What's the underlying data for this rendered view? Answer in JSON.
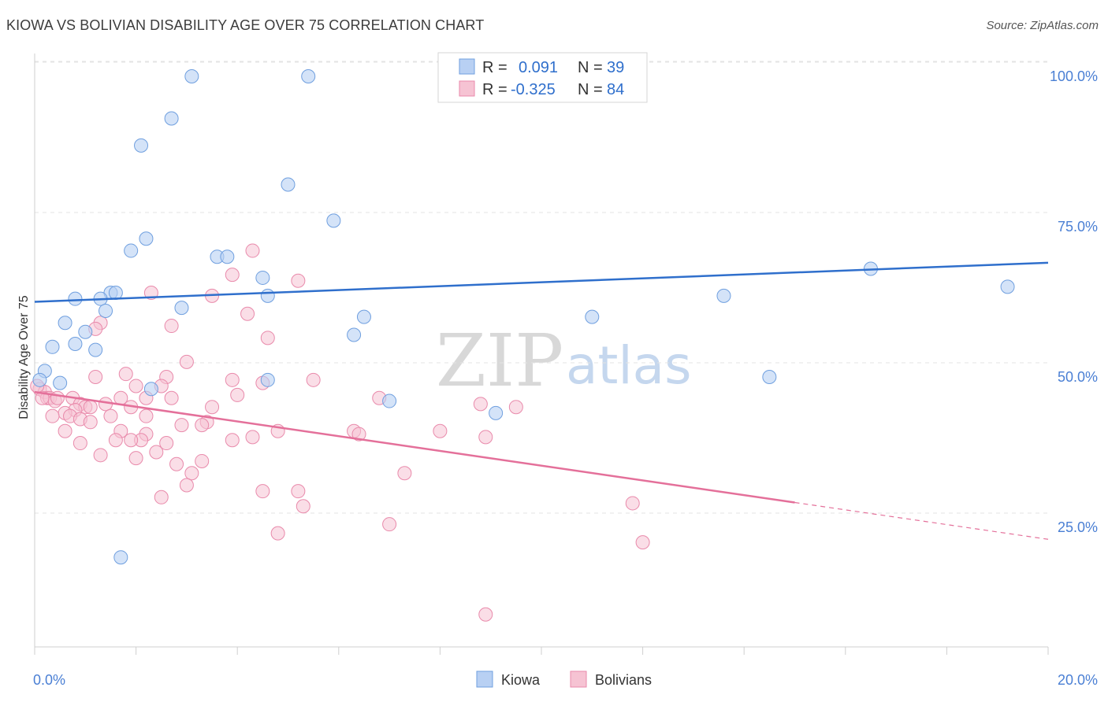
{
  "header": {
    "title": "KIOWA VS BOLIVIAN DISABILITY AGE OVER 75 CORRELATION CHART",
    "source": "Source: ZipAtlas.com"
  },
  "watermark": {
    "part1": "ZIP",
    "part2": "atlas"
  },
  "legend": {
    "rows": [
      {
        "r_label": "R = ",
        "r_value": "0.091",
        "n_label": "N = ",
        "n_value": "39"
      },
      {
        "r_label": "R = ",
        "r_value": "-0.325",
        "n_label": "N = ",
        "n_value": "84"
      }
    ]
  },
  "bottom_legend": {
    "kiowa": "Kiowa",
    "bolivians": "Bolivians"
  },
  "colors": {
    "kiowa_fill": "#b8d0f3",
    "kiowa_stroke": "#6f9fdf",
    "kiowa_line": "#2f6fcc",
    "bolivian_fill": "#f6c3d3",
    "bolivian_stroke": "#e98aab",
    "bolivian_line": "#e4709a",
    "tick_text": "#4a7fd4"
  },
  "chart_data": {
    "type": "scatter",
    "title": "KIOWA VS BOLIVIAN DISABILITY AGE OVER 75 CORRELATION CHART",
    "xlabel": "",
    "ylabel": "Disability Age Over 75",
    "xlim": [
      0,
      20
    ],
    "ylim": [
      0,
      104
    ],
    "x_tick_labels": [
      "0.0%",
      "20.0%"
    ],
    "y_ticks": [
      25,
      50,
      75,
      100
    ],
    "y_tick_labels": [
      "25.0%",
      "50.0%",
      "75.0%",
      "100.0%"
    ],
    "grid": "horizontal dashed",
    "legend_position": "top-center",
    "series": [
      {
        "name": "Kiowa",
        "r": 0.091,
        "n": 39,
        "trend": {
          "x": [
            0,
            20
          ],
          "y": [
            62.5,
            69.0
          ],
          "dashed_from": null
        },
        "points": [
          [
            3.1,
            100.0
          ],
          [
            5.4,
            100.0
          ],
          [
            9.0,
            100.0
          ],
          [
            2.7,
            93.0
          ],
          [
            2.1,
            88.5
          ],
          [
            5.0,
            82.0
          ],
          [
            5.9,
            76.0
          ],
          [
            2.2,
            73.0
          ],
          [
            1.9,
            71.0
          ],
          [
            3.6,
            70.0
          ],
          [
            3.8,
            70.0
          ],
          [
            4.5,
            66.5
          ],
          [
            1.5,
            64.0
          ],
          [
            1.6,
            64.0
          ],
          [
            4.6,
            63.5
          ],
          [
            0.8,
            63.0
          ],
          [
            1.3,
            63.0
          ],
          [
            1.4,
            61.0
          ],
          [
            2.9,
            61.5
          ],
          [
            0.6,
            59.0
          ],
          [
            1.0,
            57.5
          ],
          [
            0.8,
            55.5
          ],
          [
            1.2,
            54.5
          ],
          [
            0.35,
            55.0
          ],
          [
            0.2,
            51.0
          ],
          [
            0.5,
            49.0
          ],
          [
            0.1,
            49.5
          ],
          [
            2.3,
            48.0
          ],
          [
            4.6,
            49.5
          ],
          [
            6.3,
            57.0
          ],
          [
            6.5,
            60.0
          ],
          [
            7.0,
            46.0
          ],
          [
            9.1,
            44.0
          ],
          [
            11.0,
            60.0
          ],
          [
            13.6,
            63.5
          ],
          [
            14.5,
            50.0
          ],
          [
            16.5,
            68.0
          ],
          [
            19.2,
            65.0
          ],
          [
            1.7,
            20.0
          ]
        ]
      },
      {
        "name": "Bolivians",
        "r": -0.325,
        "n": 84,
        "trend": {
          "x": [
            0,
            20
          ],
          "y": [
            47.5,
            23.0
          ],
          "dashed_from": 15.0
        },
        "points": [
          [
            4.3,
            71.0
          ],
          [
            3.9,
            67.0
          ],
          [
            5.2,
            66.0
          ],
          [
            2.3,
            64.0
          ],
          [
            3.5,
            63.5
          ],
          [
            4.2,
            60.5
          ],
          [
            1.3,
            59.0
          ],
          [
            2.7,
            58.5
          ],
          [
            1.2,
            58.0
          ],
          [
            4.6,
            56.5
          ],
          [
            3.0,
            52.5
          ],
          [
            1.8,
            50.5
          ],
          [
            2.6,
            50.0
          ],
          [
            1.2,
            50.0
          ],
          [
            3.9,
            49.5
          ],
          [
            4.5,
            49.0
          ],
          [
            5.5,
            49.5
          ],
          [
            2.0,
            48.5
          ],
          [
            2.5,
            48.5
          ],
          [
            0.1,
            48.0
          ],
          [
            0.2,
            47.5
          ],
          [
            0.25,
            46.5
          ],
          [
            0.3,
            46.5
          ],
          [
            0.4,
            46.0
          ],
          [
            0.45,
            46.5
          ],
          [
            0.75,
            46.5
          ],
          [
            0.9,
            45.5
          ],
          [
            1.0,
            45.0
          ],
          [
            0.8,
            44.5
          ],
          [
            1.1,
            45.0
          ],
          [
            1.4,
            45.5
          ],
          [
            0.6,
            44.0
          ],
          [
            0.7,
            43.5
          ],
          [
            0.35,
            43.5
          ],
          [
            2.2,
            46.5
          ],
          [
            2.7,
            46.5
          ],
          [
            1.7,
            46.5
          ],
          [
            1.9,
            45.0
          ],
          [
            4.0,
            47.0
          ],
          [
            3.5,
            45.0
          ],
          [
            2.2,
            43.5
          ],
          [
            1.5,
            43.5
          ],
          [
            0.9,
            43.0
          ],
          [
            1.1,
            42.5
          ],
          [
            3.4,
            42.5
          ],
          [
            3.3,
            42.0
          ],
          [
            2.9,
            42.0
          ],
          [
            0.6,
            41.0
          ],
          [
            1.7,
            41.0
          ],
          [
            2.2,
            40.5
          ],
          [
            2.1,
            39.5
          ],
          [
            1.6,
            39.5
          ],
          [
            1.9,
            39.5
          ],
          [
            2.6,
            39.0
          ],
          [
            0.9,
            39.0
          ],
          [
            3.9,
            39.5
          ],
          [
            4.3,
            40.0
          ],
          [
            4.8,
            41.0
          ],
          [
            6.3,
            41.0
          ],
          [
            6.4,
            40.5
          ],
          [
            8.0,
            41.0
          ],
          [
            8.9,
            40.0
          ],
          [
            9.5,
            45.0
          ],
          [
            8.8,
            45.5
          ],
          [
            6.8,
            46.5
          ],
          [
            1.3,
            37.0
          ],
          [
            2.4,
            37.5
          ],
          [
            2.0,
            36.5
          ],
          [
            3.3,
            36.0
          ],
          [
            2.8,
            35.5
          ],
          [
            3.1,
            34.0
          ],
          [
            3.0,
            32.0
          ],
          [
            7.3,
            34.0
          ],
          [
            4.5,
            31.0
          ],
          [
            5.2,
            31.0
          ],
          [
            2.5,
            30.0
          ],
          [
            5.3,
            28.5
          ],
          [
            7.0,
            25.5
          ],
          [
            4.8,
            24.0
          ],
          [
            11.8,
            29.0
          ],
          [
            12.0,
            22.5
          ],
          [
            8.9,
            10.5
          ],
          [
            0.05,
            48.5
          ],
          [
            0.15,
            46.5
          ]
        ]
      }
    ]
  }
}
